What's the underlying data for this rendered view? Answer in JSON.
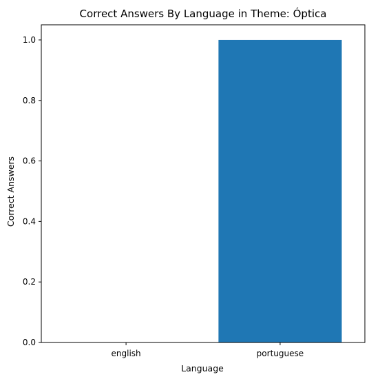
{
  "chart_data": {
    "type": "bar",
    "title": "Correct Answers By Language in Theme: Óptica",
    "xlabel": "Language",
    "ylabel": "Correct Answers",
    "categories": [
      "english",
      "portuguese"
    ],
    "values": [
      0,
      1
    ],
    "ylim": [
      0,
      1.05
    ],
    "yticks": [
      "0.0",
      "0.2",
      "0.4",
      "0.6",
      "0.8",
      "1.0"
    ],
    "bar_color": "#1f77b4",
    "grid": false,
    "legend": "none"
  }
}
